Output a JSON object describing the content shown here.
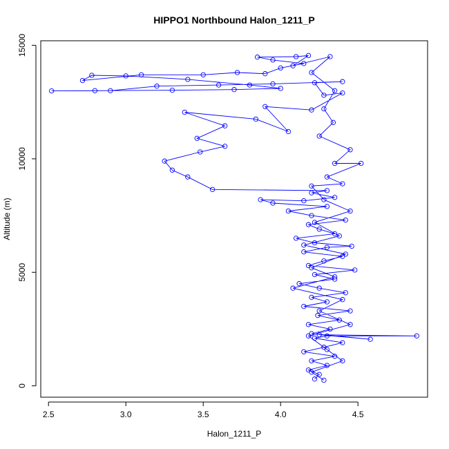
{
  "chart_data": {
    "type": "line",
    "title": "HIPPO1 Northbound Halon_1211_P",
    "xlabel": "Halon_1211_P",
    "ylabel": "Altitude (m)",
    "xlim": [
      2.45,
      4.95
    ],
    "ylim": [
      -500,
      15200
    ],
    "xticks": [
      2.5,
      3.0,
      3.5,
      4.0,
      4.5
    ],
    "xtick_labels": [
      "2.5",
      "3.0",
      "3.5",
      "4.0",
      "4.5"
    ],
    "yticks": [
      0,
      5000,
      10000,
      15000
    ],
    "ytick_labels": [
      "0",
      "5000",
      "10000",
      "15000"
    ],
    "grid": false,
    "legend": "none",
    "series_color": "#0000ff",
    "marker": "open-circle",
    "series": [
      {
        "points": [
          [
            4.22,
            300
          ],
          [
            4.25,
            500
          ],
          [
            4.18,
            700
          ],
          [
            4.3,
            900
          ],
          [
            4.2,
            1100
          ],
          [
            4.35,
            1300
          ],
          [
            4.15,
            1500
          ],
          [
            4.28,
            1700
          ],
          [
            4.4,
            1900
          ],
          [
            4.22,
            2100
          ],
          [
            4.3,
            2200
          ],
          [
            4.88,
            2200
          ],
          [
            4.25,
            2250
          ],
          [
            4.58,
            2050
          ],
          [
            4.2,
            2300
          ],
          [
            4.32,
            2500
          ],
          [
            4.18,
            2700
          ],
          [
            4.38,
            2900
          ],
          [
            4.24,
            3100
          ],
          [
            4.45,
            3300
          ],
          [
            4.15,
            3500
          ],
          [
            4.3,
            3700
          ],
          [
            4.2,
            3900
          ],
          [
            4.42,
            4100
          ],
          [
            4.25,
            4300
          ],
          [
            4.12,
            4500
          ],
          [
            4.35,
            4700
          ],
          [
            4.22,
            4900
          ],
          [
            4.48,
            5100
          ],
          [
            4.18,
            5300
          ],
          [
            4.28,
            5500
          ],
          [
            4.4,
            5700
          ],
          [
            4.15,
            5900
          ],
          [
            4.3,
            6100
          ],
          [
            4.46,
            6150
          ],
          [
            4.22,
            6300
          ],
          [
            4.1,
            6500
          ],
          [
            4.35,
            6700
          ],
          [
            4.25,
            6900
          ],
          [
            4.18,
            7100
          ],
          [
            4.42,
            7300
          ],
          [
            4.2,
            7500
          ],
          [
            4.05,
            7700
          ],
          [
            4.3,
            7900
          ],
          [
            3.95,
            8050
          ],
          [
            3.87,
            8200
          ],
          [
            4.15,
            8150
          ],
          [
            4.35,
            8300
          ],
          [
            4.2,
            8500
          ],
          [
            4.3,
            8600
          ],
          [
            3.56,
            8650
          ],
          [
            3.4,
            9200
          ],
          [
            3.3,
            9500
          ],
          [
            3.25,
            9900
          ],
          [
            3.48,
            10300
          ],
          [
            3.64,
            10550
          ],
          [
            3.46,
            10900
          ],
          [
            3.64,
            11450
          ],
          [
            3.38,
            12050
          ],
          [
            3.84,
            11750
          ],
          [
            4.05,
            11200
          ],
          [
            3.9,
            12300
          ],
          [
            4.2,
            12150
          ],
          [
            4.4,
            12900
          ],
          [
            4.28,
            12800
          ],
          [
            4.22,
            13350
          ],
          [
            4.4,
            13400
          ],
          [
            3.95,
            13300
          ],
          [
            3.6,
            13250
          ],
          [
            3.2,
            13200
          ],
          [
            2.9,
            13000
          ],
          [
            2.52,
            12990
          ],
          [
            2.8,
            13000
          ],
          [
            3.3,
            13020
          ],
          [
            3.7,
            13050
          ],
          [
            4.0,
            13100
          ],
          [
            3.8,
            13250
          ],
          [
            3.4,
            13500
          ],
          [
            3.0,
            13650
          ],
          [
            2.78,
            13680
          ],
          [
            2.72,
            13450
          ],
          [
            3.1,
            13700
          ],
          [
            3.5,
            13700
          ],
          [
            3.72,
            13800
          ],
          [
            3.9,
            13750
          ],
          [
            4.0,
            14000
          ],
          [
            4.15,
            14200
          ],
          [
            3.95,
            14350
          ],
          [
            3.85,
            14480
          ],
          [
            4.1,
            14500
          ],
          [
            4.18,
            14550
          ],
          [
            4.08,
            14100
          ],
          [
            4.32,
            14500
          ],
          [
            4.2,
            13800
          ],
          [
            4.35,
            13000
          ],
          [
            4.28,
            12200
          ],
          [
            4.34,
            11600
          ],
          [
            4.25,
            11000
          ],
          [
            4.45,
            10400
          ],
          [
            4.35,
            9800
          ],
          [
            4.52,
            9800
          ],
          [
            4.3,
            9200
          ],
          [
            4.4,
            8900
          ],
          [
            4.2,
            8800
          ],
          [
            4.28,
            8200
          ],
          [
            4.45,
            7700
          ],
          [
            4.22,
            7200
          ],
          [
            4.38,
            6600
          ],
          [
            4.15,
            6200
          ],
          [
            4.42,
            5800
          ],
          [
            4.2,
            5200
          ],
          [
            4.35,
            4800
          ],
          [
            4.08,
            4300
          ],
          [
            4.4,
            3800
          ],
          [
            4.25,
            3300
          ],
          [
            4.45,
            2700
          ],
          [
            4.18,
            2200
          ],
          [
            4.3,
            1600
          ],
          [
            4.4,
            1100
          ],
          [
            4.2,
            600
          ],
          [
            4.28,
            250
          ]
        ]
      }
    ]
  }
}
